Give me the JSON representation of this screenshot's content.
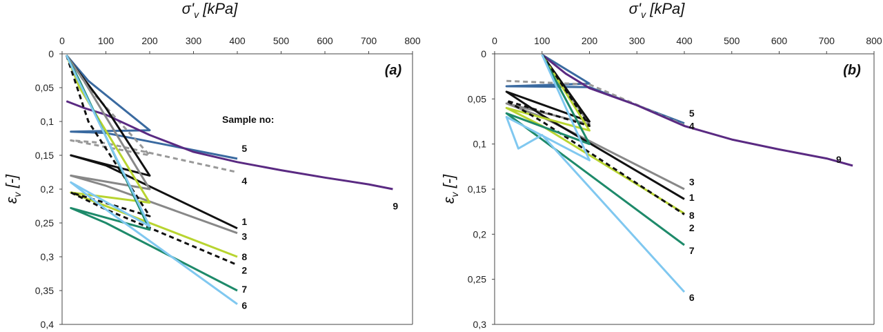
{
  "chart_data": [
    {
      "type": "line",
      "panel_label": "(a)",
      "xlabel": {
        "main": "σ'",
        "sub": "v",
        "unit": " [kPa]"
      },
      "ylabel": {
        "main": "ε",
        "sub": "v",
        "unit": " [-]"
      },
      "x_axis_position": "top",
      "y_inverted": true,
      "xlim": [
        0,
        800
      ],
      "ylim": [
        0,
        0.4
      ],
      "x_ticks": [
        "0",
        "100",
        "200",
        "300",
        "400",
        "500",
        "600",
        "700",
        "800"
      ],
      "y_ticks": [
        "0",
        "0,05",
        "0,1",
        "0,15",
        "0,2",
        "0,25",
        "0,3",
        "0,35",
        "0,4"
      ],
      "legend_title": "Sample no:",
      "series": [
        {
          "name": "5",
          "color": "#3a6aa0",
          "dash": false,
          "points": [
            [
              10,
              0.002
            ],
            [
              60,
              0.04
            ],
            [
              200,
              0.113
            ],
            [
              20,
              0.115
            ],
            [
              100,
              0.117
            ],
            [
              400,
              0.155
            ]
          ]
        },
        {
          "name": "4",
          "color": "#999999",
          "dash": true,
          "points": [
            [
              10,
              0.002
            ],
            [
              60,
              0.05
            ],
            [
              200,
              0.15
            ],
            [
              20,
              0.128
            ],
            [
              100,
              0.132
            ],
            [
              400,
              0.175
            ]
          ]
        },
        {
          "name": "9",
          "color": "#5a2a82",
          "dash": false,
          "points": [
            [
              10,
              0.07
            ],
            [
              50,
              0.08
            ],
            [
              100,
              0.09
            ],
            [
              200,
              0.12
            ],
            [
              300,
              0.145
            ],
            [
              400,
              0.16
            ],
            [
              500,
              0.172
            ],
            [
              600,
              0.183
            ],
            [
              700,
              0.193
            ],
            [
              755,
              0.2
            ]
          ]
        },
        {
          "name": "1",
          "color": "#111111",
          "dash": false,
          "points": [
            [
              10,
              0.002
            ],
            [
              30,
              0.02
            ],
            [
              100,
              0.08
            ],
            [
              200,
              0.18
            ],
            [
              20,
              0.15
            ],
            [
              100,
              0.165
            ],
            [
              400,
              0.258
            ]
          ]
        },
        {
          "name": "3",
          "color": "#888888",
          "dash": false,
          "points": [
            [
              10,
              0.002
            ],
            [
              50,
              0.04
            ],
            [
              200,
              0.2
            ],
            [
              20,
              0.18
            ],
            [
              100,
              0.195
            ],
            [
              400,
              0.265
            ]
          ]
        },
        {
          "name": "8",
          "color": "#b8d430",
          "dash": false,
          "points": [
            [
              10,
              0.002
            ],
            [
              40,
              0.05
            ],
            [
              200,
              0.22
            ],
            [
              20,
              0.205
            ],
            [
              100,
              0.225
            ],
            [
              400,
              0.3
            ]
          ]
        },
        {
          "name": "2",
          "color": "#111111",
          "dash": true,
          "points": [
            [
              10,
              0.002
            ],
            [
              60,
              0.1
            ],
            [
              200,
              0.24
            ],
            [
              20,
              0.205
            ],
            [
              100,
              0.23
            ],
            [
              400,
              0.312
            ]
          ]
        },
        {
          "name": "7",
          "color": "#1e8a6a",
          "dash": false,
          "points": [
            [
              10,
              0.002
            ],
            [
              40,
              0.04
            ],
            [
              200,
              0.26
            ],
            [
              20,
              0.228
            ],
            [
              100,
              0.25
            ],
            [
              400,
              0.35
            ]
          ]
        },
        {
          "name": "6",
          "color": "#80c8f0",
          "dash": false,
          "points": [
            [
              10,
              0.002
            ],
            [
              30,
              0.03
            ],
            [
              200,
              0.255
            ],
            [
              20,
              0.19
            ],
            [
              100,
              0.23
            ],
            [
              400,
              0.37
            ]
          ]
        }
      ],
      "series_labels": [
        {
          "name": "5",
          "x": 410,
          "y": 0.14
        },
        {
          "name": "4",
          "x": 410,
          "y": 0.188
        },
        {
          "name": "9",
          "x": 755,
          "y": 0.225
        },
        {
          "name": "1",
          "x": 410,
          "y": 0.248
        },
        {
          "name": "3",
          "x": 410,
          "y": 0.27
        },
        {
          "name": "8",
          "x": 410,
          "y": 0.3
        },
        {
          "name": "2",
          "x": 410,
          "y": 0.32
        },
        {
          "name": "7",
          "x": 410,
          "y": 0.348
        },
        {
          "name": "6",
          "x": 410,
          "y": 0.372
        }
      ]
    },
    {
      "type": "line",
      "panel_label": "(b)",
      "xlabel": {
        "main": "σ'",
        "sub": "v",
        "unit": " [kPa]"
      },
      "ylabel": {
        "main": "ε",
        "sub": "v",
        "unit": " [-]"
      },
      "x_axis_position": "top",
      "y_inverted": true,
      "xlim": [
        0,
        800
      ],
      "ylim": [
        0,
        0.3
      ],
      "x_ticks": [
        "0",
        "100",
        "200",
        "300",
        "400",
        "500",
        "600",
        "700",
        "800"
      ],
      "y_ticks": [
        "0",
        "0,05",
        "0,1",
        "0,15",
        "0,2",
        "0,25",
        "0,3"
      ],
      "series": [
        {
          "name": "5",
          "color": "#3a6aa0",
          "dash": false,
          "points": [
            [
              100,
              0.001
            ],
            [
              200,
              0.033
            ],
            [
              25,
              0.036
            ],
            [
              200,
              0.037
            ],
            [
              400,
              0.077
            ]
          ]
        },
        {
          "name": "4",
          "color": "#999999",
          "dash": true,
          "points": [
            [
              25,
              0.03
            ],
            [
              200,
              0.034
            ],
            [
              400,
              0.079
            ]
          ]
        },
        {
          "name": "9",
          "color": "#5a2a82",
          "dash": false,
          "points": [
            [
              100,
              0.001
            ],
            [
              150,
              0.022
            ],
            [
              200,
              0.038
            ],
            [
              300,
              0.057
            ],
            [
              400,
              0.08
            ],
            [
              500,
              0.095
            ],
            [
              600,
              0.106
            ],
            [
              700,
              0.116
            ],
            [
              755,
              0.124
            ]
          ]
        },
        {
          "name": "3",
          "color": "#888888",
          "dash": false,
          "points": [
            [
              100,
              0.001
            ],
            [
              200,
              0.078
            ],
            [
              25,
              0.055
            ],
            [
              100,
              0.07
            ],
            [
              400,
              0.15
            ]
          ]
        },
        {
          "name": "1",
          "color": "#111111",
          "dash": false,
          "points": [
            [
              100,
              0.001
            ],
            [
              200,
              0.075
            ],
            [
              25,
              0.042
            ],
            [
              100,
              0.068
            ],
            [
              400,
              0.161
            ]
          ]
        },
        {
          "name": "8",
          "color": "#b8d430",
          "dash": false,
          "points": [
            [
              100,
              0.001
            ],
            [
              200,
              0.085
            ],
            [
              25,
              0.06
            ],
            [
              100,
              0.08
            ],
            [
              400,
              0.177
            ]
          ]
        },
        {
          "name": "2",
          "color": "#111111",
          "dash": true,
          "points": [
            [
              100,
              0.001
            ],
            [
              200,
              0.08
            ],
            [
              25,
              0.052
            ],
            [
              100,
              0.075
            ],
            [
              400,
              0.178
            ]
          ]
        },
        {
          "name": "7",
          "color": "#1e8a6a",
          "dash": false,
          "points": [
            [
              100,
              0.001
            ],
            [
              200,
              0.1
            ],
            [
              25,
              0.066
            ],
            [
              100,
              0.095
            ],
            [
              400,
              0.212
            ]
          ]
        },
        {
          "name": "6",
          "color": "#80c8f0",
          "dash": false,
          "points": [
            [
              100,
              0.001
            ],
            [
              200,
              0.118
            ],
            [
              25,
              0.07
            ],
            [
              50,
              0.105
            ],
            [
              100,
              0.09
            ],
            [
              400,
              0.264
            ]
          ]
        }
      ],
      "series_labels": [
        {
          "name": "5",
          "x": 410,
          "y": 0.066
        },
        {
          "name": "4",
          "x": 410,
          "y": 0.08
        },
        {
          "name": "9",
          "x": 720,
          "y": 0.117
        },
        {
          "name": "3",
          "x": 410,
          "y": 0.142
        },
        {
          "name": "1",
          "x": 410,
          "y": 0.159
        },
        {
          "name": "8",
          "x": 410,
          "y": 0.179
        },
        {
          "name": "2",
          "x": 410,
          "y": 0.193
        },
        {
          "name": "7",
          "x": 410,
          "y": 0.218
        },
        {
          "name": "6",
          "x": 410,
          "y": 0.27
        }
      ]
    }
  ]
}
